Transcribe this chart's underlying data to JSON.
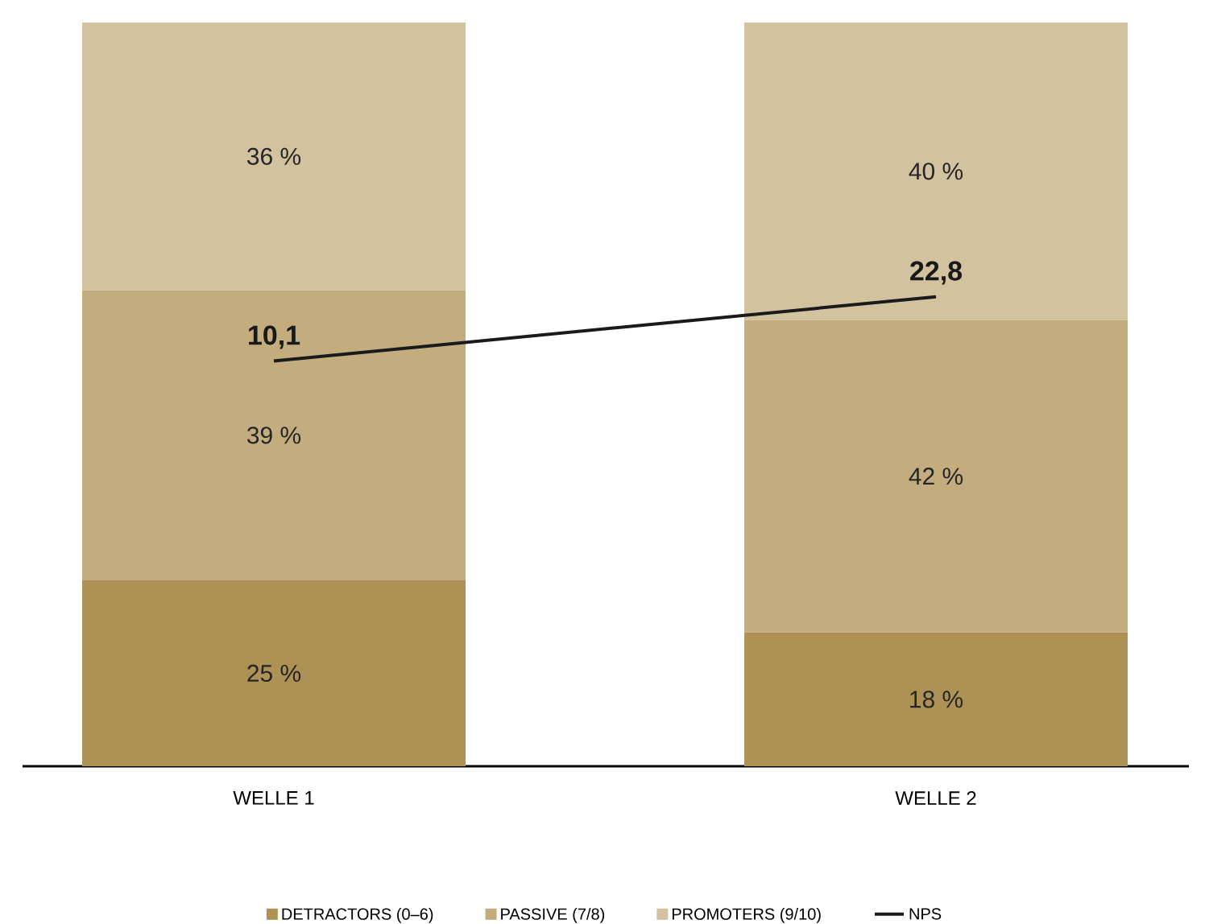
{
  "chart_data": {
    "type": "bar",
    "stacked": true,
    "categories": [
      "WELLE 1",
      "WELLE 2"
    ],
    "ylim": [
      0,
      100
    ],
    "y2lim": [
      -70,
      77
    ],
    "tick_labels": "x",
    "legend": "bottom",
    "series": [
      {
        "name": "DETRACTORS (0–6)",
        "color": "#ae9155",
        "values": [
          25,
          18
        ],
        "value_labels": [
          "25 %",
          "18 %"
        ]
      },
      {
        "name": "PASSIVE (7/8)",
        "color": "#c3ad7e",
        "values": [
          39,
          42
        ],
        "value_labels": [
          "39 %",
          "42 %"
        ]
      },
      {
        "name": "PROMOTERS (9/10)",
        "color": "#d3c29f",
        "values": [
          36,
          40
        ],
        "value_labels": [
          "36 %",
          "40 %"
        ]
      },
      {
        "name": "NPS",
        "type": "line",
        "axis": "y2",
        "color": "#1a1a1a",
        "values": [
          10.1,
          22.8
        ],
        "value_labels": [
          "10,1",
          "22,8"
        ]
      }
    ]
  }
}
